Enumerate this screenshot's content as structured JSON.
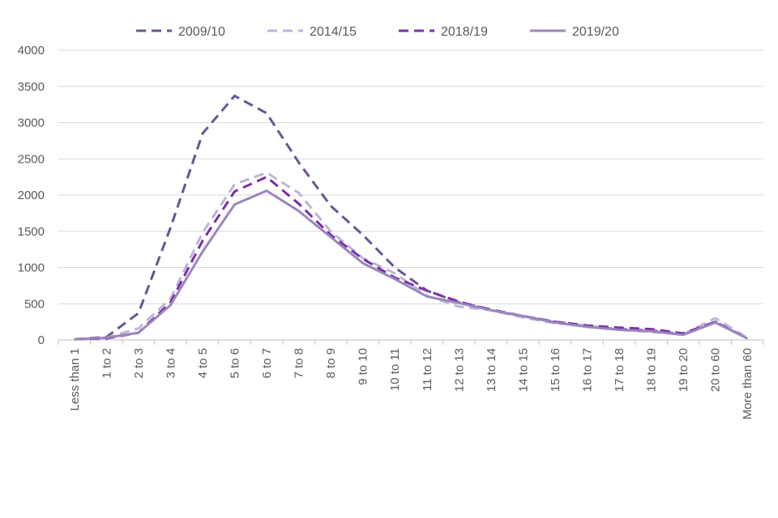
{
  "chart_data": {
    "type": "line",
    "title": "",
    "xlabel": "",
    "ylabel": "",
    "ylim": [
      0,
      4000
    ],
    "yticks": [
      0,
      500,
      1000,
      1500,
      2000,
      2500,
      3000,
      3500,
      4000
    ],
    "grid": true,
    "legend_position": "top",
    "categories": [
      "Less than 1",
      "1 to 2",
      "2 to 3",
      "3 to 4",
      "4 to 5",
      "5 to 6",
      "6 to 7",
      "7 to 8",
      "8 to 9",
      "9 to 10",
      "10 to 11",
      "11 to 12",
      "12 to 13",
      "13 to 14",
      "14 to 15",
      "15 to 16",
      "16 to 17",
      "17 to 18",
      "18 to 19",
      "19 to 20",
      "20 to 60",
      "More than 60"
    ],
    "series": [
      {
        "name": "2009/10",
        "color": "#6a5491",
        "style": "dashed",
        "values": [
          10,
          40,
          370,
          1550,
          2850,
          3370,
          3130,
          2450,
          1850,
          1450,
          1000,
          680,
          520,
          420,
          330,
          250,
          190,
          150,
          130,
          80,
          250,
          20
        ]
      },
      {
        "name": "2014/15",
        "color": "#bfb3d8",
        "style": "dashed",
        "values": [
          10,
          30,
          160,
          570,
          1480,
          2150,
          2310,
          2030,
          1500,
          1130,
          920,
          610,
          460,
          410,
          310,
          230,
          200,
          140,
          110,
          80,
          300,
          30
        ]
      },
      {
        "name": "2018/19",
        "color": "#7b2fa6",
        "style": "dashed",
        "values": [
          10,
          20,
          100,
          520,
          1370,
          2050,
          2250,
          1880,
          1450,
          1120,
          860,
          680,
          530,
          410,
          330,
          250,
          200,
          170,
          150,
          90,
          250,
          20
        ]
      },
      {
        "name": "2019/20",
        "color": "#9b85bf",
        "style": "solid",
        "values": [
          10,
          30,
          100,
          480,
          1220,
          1870,
          2060,
          1780,
          1420,
          1060,
          840,
          600,
          510,
          410,
          330,
          240,
          180,
          140,
          120,
          70,
          240,
          20
        ]
      }
    ]
  }
}
